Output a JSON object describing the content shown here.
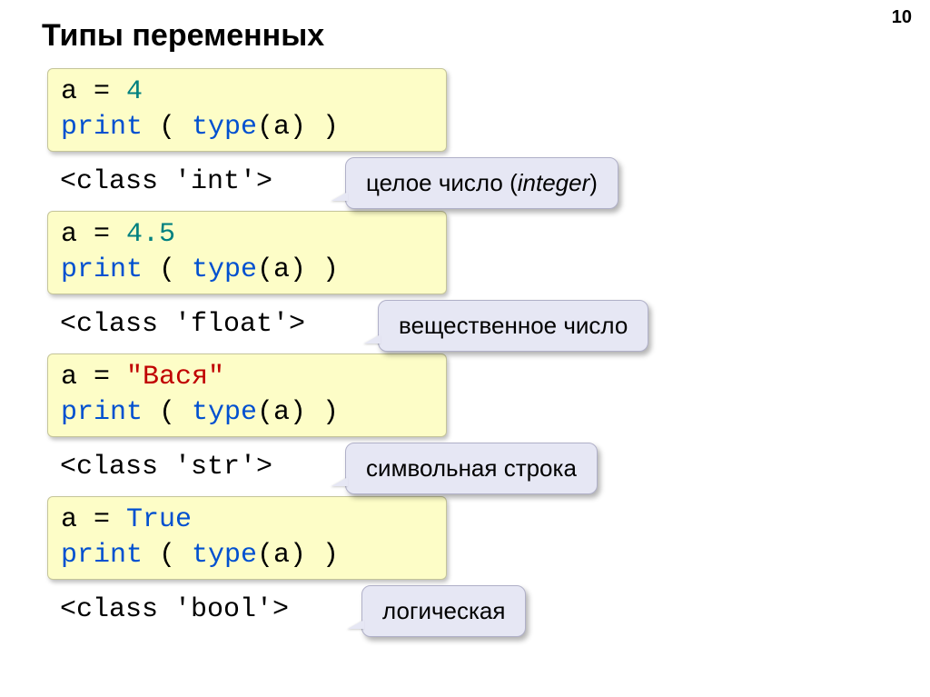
{
  "page_number": "10",
  "title": "Типы переменных",
  "sections": [
    {
      "code": {
        "line1": {
          "var": "a",
          "eq": " = ",
          "val": "4",
          "val_color": "teal"
        },
        "line2": {
          "p1": "print",
          "p2": " ( ",
          "fn": "type",
          "p3": "(a) )"
        }
      },
      "output": "<class 'int'>",
      "callout": {
        "text": "целое число (",
        "italic": "integer",
        "suffix": ")"
      },
      "callout_with_output": true
    },
    {
      "code": {
        "line1": {
          "var": "a",
          "eq": " = ",
          "val": "4.5",
          "val_color": "teal"
        },
        "line2": {
          "p1": "print",
          "p2": " ( ",
          "fn": "type",
          "p3": "(a) )"
        }
      },
      "output": "<class 'float'>",
      "callout": {
        "text": "вещественное число"
      },
      "callout_with_output": true
    },
    {
      "code": {
        "line1": {
          "var": "a",
          "eq": " = ",
          "val": "\"Вася\"",
          "val_color": "red"
        },
        "line2": {
          "p1": "print",
          "p2": " ( ",
          "fn": "type",
          "p3": "(a) )"
        }
      },
      "output": "<class 'str'>",
      "callout": {
        "text": "символьная строка"
      },
      "callout_with_output": true
    },
    {
      "code": {
        "line1": {
          "var": "a",
          "eq": " = ",
          "val": "True",
          "val_color": "blue"
        },
        "line2": {
          "p1": "print",
          "p2": " ( ",
          "fn": "type",
          "p3": "(a) )"
        }
      },
      "output": "<class 'bool'>",
      "callout": {
        "text": "логическая"
      },
      "callout_with_output": true
    }
  ],
  "colors": {
    "code_bg": "#fdfdc7",
    "callout_bg": "#e6e7f4",
    "teal": "#008080",
    "blue": "#0050d0",
    "red": "#c00000",
    "black": "#000000"
  }
}
